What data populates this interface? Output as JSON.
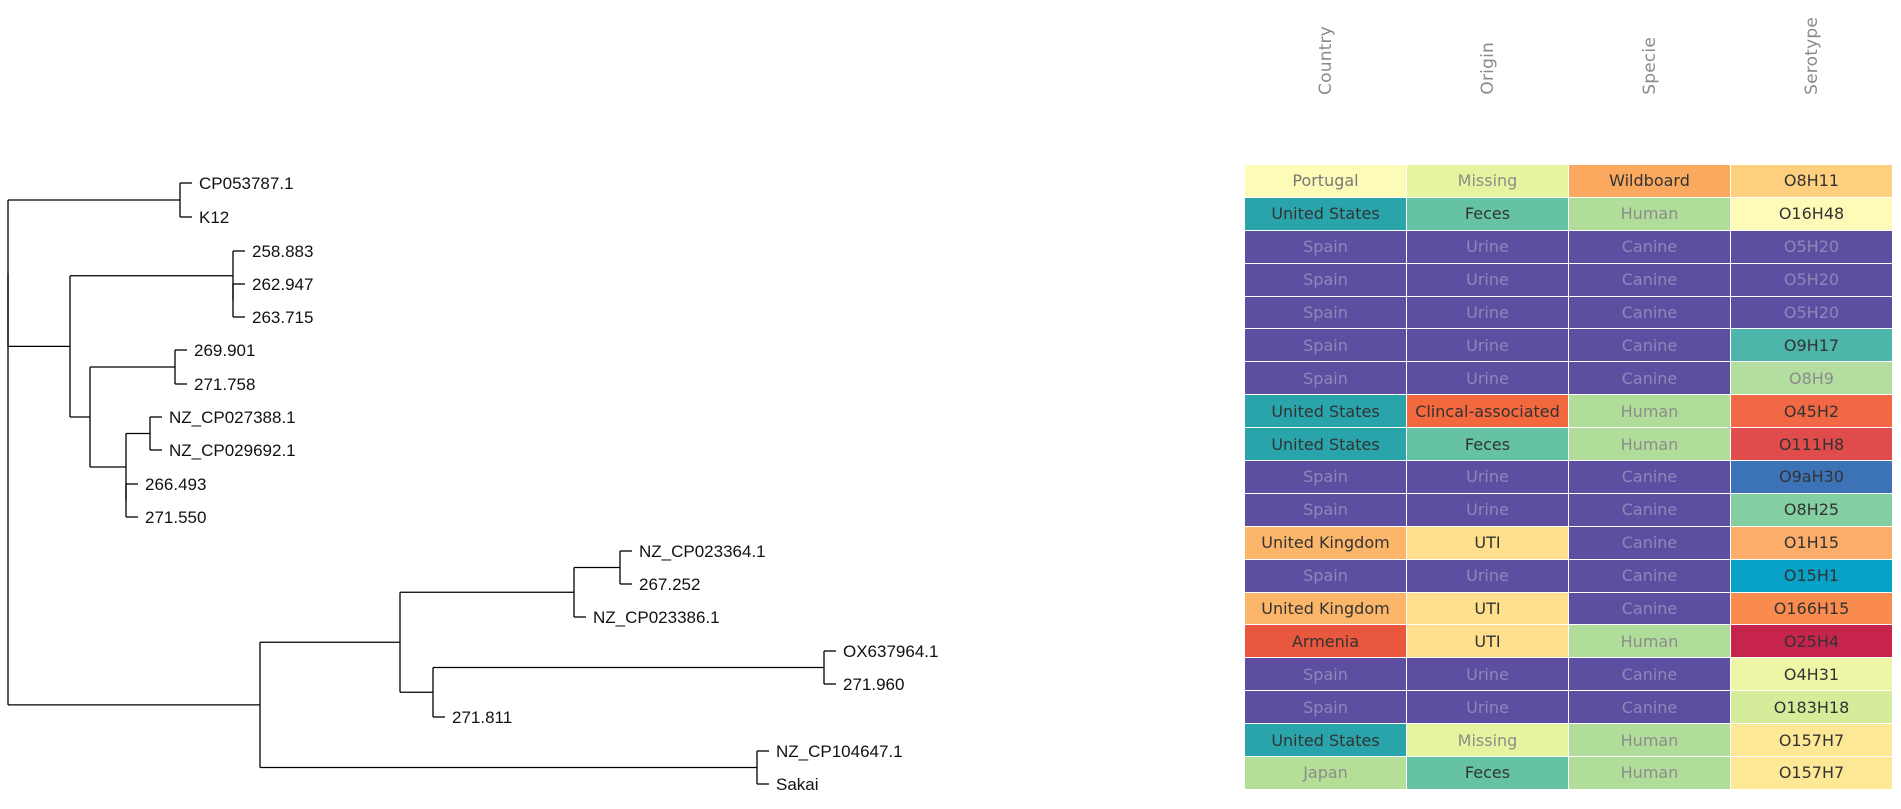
{
  "columns": [
    "Country",
    "Origin",
    "Specie",
    "Serotype"
  ],
  "colors": {
    "Portugal": "#fdfbb8",
    "United States": "#2aa4ab",
    "Spain": "#5e4ea1",
    "United Kingdom": "#fcb669",
    "Armenia": "#e8573e",
    "Japan": "#b5de96",
    "Missing": "#e4f49f",
    "Feces": "#66c2a5",
    "Urine": "#5e4ea1",
    "Clincal-associated": "#f4683e",
    "UTI": "#fedf8b",
    "Wildboard": "#fba95e",
    "Human": "#b1dd9a",
    "Canine": "#5e4ea1",
    "O8H11": "#fed07e",
    "O16H48": "#fefbb9",
    "O5H20": "#5e4ea1",
    "O9H17": "#4db5aa",
    "O8H9": "#b3dea0",
    "O45H2": "#f26844",
    "O111H8": "#e04b4c",
    "O9aH30": "#3c73b6",
    "O8H25": "#84cfa2",
    "O1H15": "#fcad6a",
    "O15H1": "#07a0c6",
    "O166H15": "#f98b4f",
    "O25H4": "#c6234d",
    "O4H31": "#edf6a4",
    "O183H18": "#d5ed9b",
    "O157H7": "#fde895"
  },
  "text_colors": {
    "dark": "#333333",
    "light": "#8c8c8c",
    "purple": "#8f86b9"
  },
  "tree": {
    "tips": [
      {
        "label": "CP053787.1"
      },
      {
        "label": "K12"
      },
      {
        "label": "258.883"
      },
      {
        "label": "262.947"
      },
      {
        "label": "263.715"
      },
      {
        "label": "269.901"
      },
      {
        "label": "271.758"
      },
      {
        "label": "NZ_CP027388.1"
      },
      {
        "label": "NZ_CP029692.1"
      },
      {
        "label": "266.493"
      },
      {
        "label": "271.550"
      },
      {
        "label": "NZ_CP023364.1"
      },
      {
        "label": "267.252"
      },
      {
        "label": "NZ_CP023386.1"
      },
      {
        "label": "OX637964.1"
      },
      {
        "label": "271.960"
      },
      {
        "label": "271.811"
      },
      {
        "label": "NZ_CP104647.1"
      },
      {
        "label": "Sakai"
      }
    ]
  },
  "rows": [
    {
      "country": "Portugal",
      "origin": "Missing",
      "specie": "Wildboard",
      "serotype": "O8H11"
    },
    {
      "country": "United States",
      "origin": "Feces",
      "specie": "Human",
      "serotype": "O16H48"
    },
    {
      "country": "Spain",
      "origin": "Urine",
      "specie": "Canine",
      "serotype": "O5H20"
    },
    {
      "country": "Spain",
      "origin": "Urine",
      "specie": "Canine",
      "serotype": "O5H20"
    },
    {
      "country": "Spain",
      "origin": "Urine",
      "specie": "Canine",
      "serotype": "O5H20"
    },
    {
      "country": "Spain",
      "origin": "Urine",
      "specie": "Canine",
      "serotype": "O9H17"
    },
    {
      "country": "Spain",
      "origin": "Urine",
      "specie": "Canine",
      "serotype": "O8H9"
    },
    {
      "country": "United States",
      "origin": "Clincal-associated",
      "specie": "Human",
      "serotype": "O45H2"
    },
    {
      "country": "United States",
      "origin": "Feces",
      "specie": "Human",
      "serotype": "O111H8"
    },
    {
      "country": "Spain",
      "origin": "Urine",
      "specie": "Canine",
      "serotype": "O9aH30"
    },
    {
      "country": "Spain",
      "origin": "Urine",
      "specie": "Canine",
      "serotype": "O8H25"
    },
    {
      "country": "United Kingdom",
      "origin": "UTI",
      "specie": "Canine",
      "serotype": "O1H15"
    },
    {
      "country": "Spain",
      "origin": "Urine",
      "specie": "Canine",
      "serotype": "O15H1"
    },
    {
      "country": "United Kingdom",
      "origin": "UTI",
      "specie": "Canine",
      "serotype": "O166H15"
    },
    {
      "country": "Armenia",
      "origin": "UTI",
      "specie": "Human",
      "serotype": "O25H4"
    },
    {
      "country": "Spain",
      "origin": "Urine",
      "specie": "Canine",
      "serotype": "O4H31"
    },
    {
      "country": "Spain",
      "origin": "Urine",
      "specie": "Canine",
      "serotype": "O183H18"
    },
    {
      "country": "United States",
      "origin": "Missing",
      "specie": "Human",
      "serotype": "O157H7"
    },
    {
      "country": "Japan",
      "origin": "Feces",
      "specie": "Human",
      "serotype": "O157H7"
    }
  ]
}
